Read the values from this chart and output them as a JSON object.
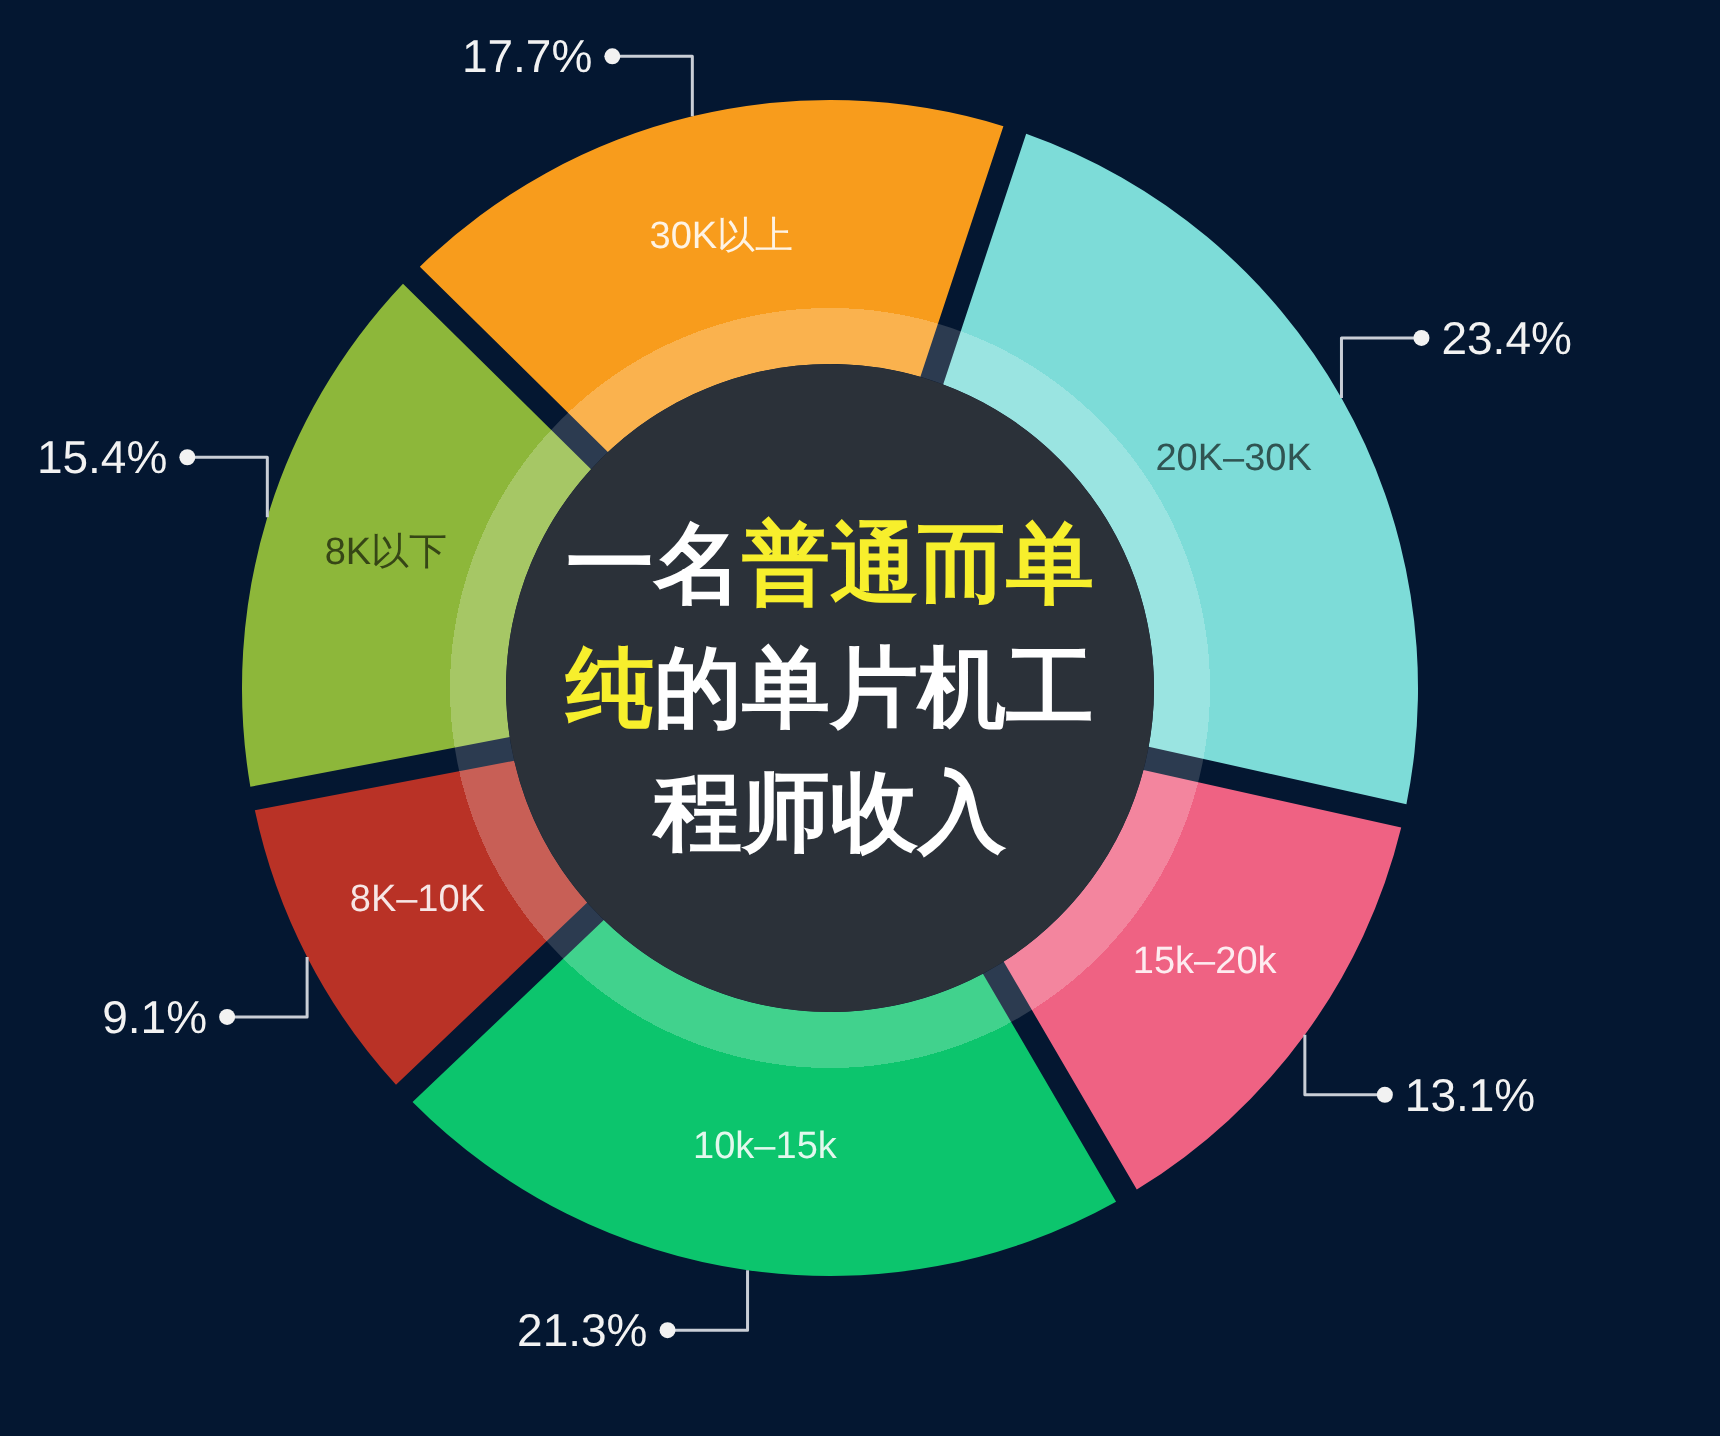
{
  "chart_data": {
    "type": "donut",
    "title": "一名**普通而单纯**的单片机工程师收入",
    "categories": [
      "8K以下",
      "8K–10K",
      "10k–15k",
      "15k–20k",
      "20K–30K",
      "30K以上"
    ],
    "values": [
      15.4,
      9.1,
      21.3,
      13.1,
      23.4,
      17.7
    ],
    "value_labels": [
      "15.4%",
      "9.1%",
      "21.3%",
      "13.1%",
      "23.4%",
      "17.7%"
    ],
    "colors": [
      "#8db73a",
      "#b93226",
      "#0cc56d",
      "#ef6283",
      "#7ddcd8",
      "#f89c1c"
    ]
  }
}
